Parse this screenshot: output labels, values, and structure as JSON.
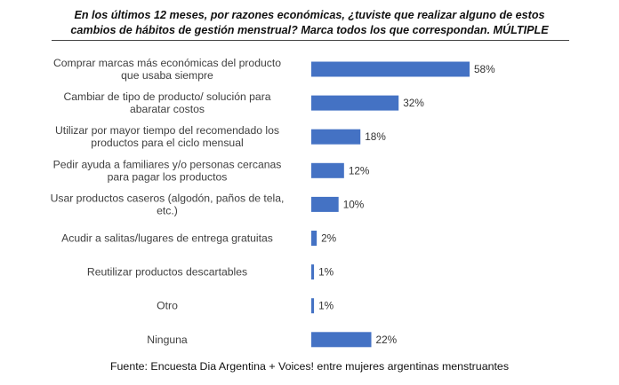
{
  "title": {
    "line1": "En los últimos 12 meses, por razones económicas, ¿tuviste que realizar alguno de estos",
    "line2": "cambios de hábitos de gestión menstrual? Marca todos los que correspondan. MÚLTIPLE"
  },
  "source": "Fuente: Encuesta Dia Argentina + Voices! entre mujeres argentinas menstruantes",
  "colors": {
    "bar": "#4472C4"
  },
  "chart_data": {
    "type": "bar",
    "orientation": "horizontal",
    "categories": [
      [
        "Comprar marcas más económicas del producto",
        "que usaba siempre"
      ],
      [
        "Cambiar de tipo de producto/ solución para",
        "abaratar costos"
      ],
      [
        "Utilizar por mayor tiempo del recomendado los",
        "productos para el ciclo mensual"
      ],
      [
        "Pedir ayuda a familiares y/o personas cercanas",
        "para pagar los productos"
      ],
      [
        "Usar productos caseros (algodón, paños de tela,",
        "etc.)"
      ],
      [
        "Acudir a salitas/lugares de entrega gratuitas"
      ],
      [
        "Reutilizar productos descartables"
      ],
      [
        "Otro"
      ],
      [
        "Ninguna"
      ]
    ],
    "values": [
      58,
      32,
      18,
      12,
      10,
      2,
      1,
      1,
      22
    ],
    "value_labels": [
      "58%",
      "32%",
      "18%",
      "12%",
      "10%",
      "2%",
      "1%",
      "1%",
      "22%"
    ],
    "unit": "%",
    "xlim": [
      0,
      58
    ],
    "grid": false,
    "legend": "none"
  }
}
